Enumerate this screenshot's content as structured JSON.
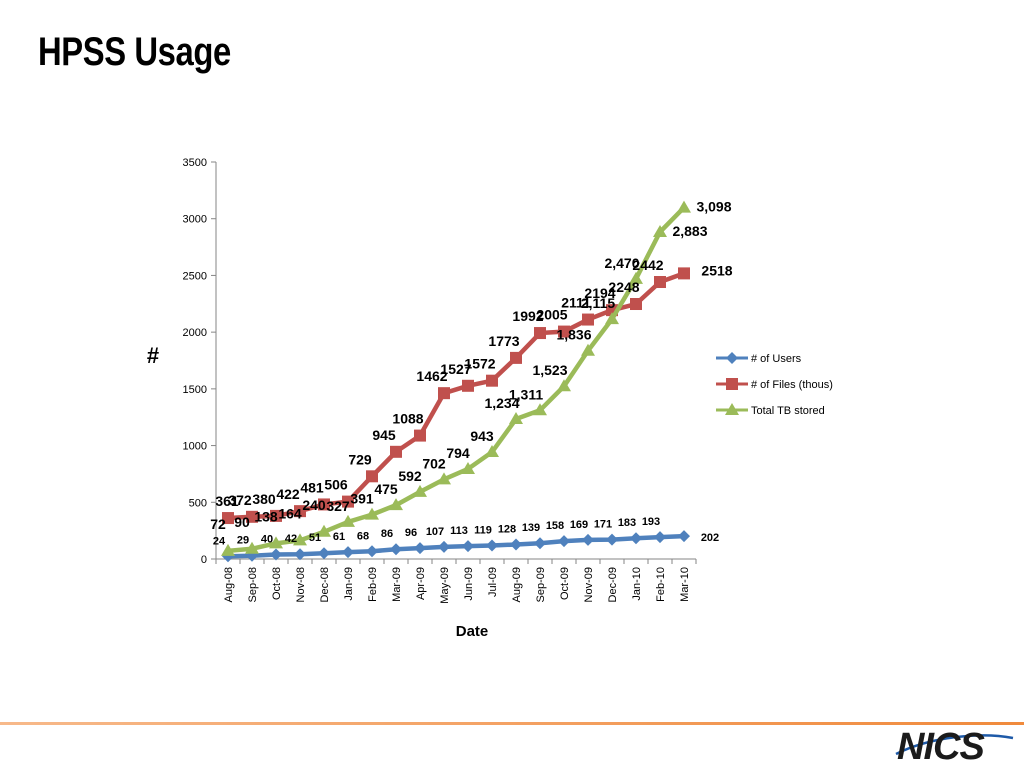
{
  "slide": {
    "title": "HPSS Usage",
    "logo": "NICS"
  },
  "chart_data": {
    "type": "line",
    "title": "",
    "xlabel": "Date",
    "ylabel": "#",
    "ylim": [
      0,
      3500
    ],
    "yticks": [
      0,
      500,
      1000,
      1500,
      2000,
      2500,
      3000,
      3500
    ],
    "grid": false,
    "legend_position": "right",
    "categories": [
      "Aug-08",
      "Sep-08",
      "Oct-08",
      "Nov-08",
      "Dec-08",
      "Jan-09",
      "Feb-09",
      "Mar-09",
      "Apr-09",
      "May-09",
      "Jun-09",
      "Jul-09",
      "Aug-09",
      "Sep-09",
      "Oct-09",
      "Nov-09",
      "Dec-09",
      "Jan-10",
      "Feb-10",
      "Mar-10"
    ],
    "series": [
      {
        "name": "# of Users",
        "color": "#4f81bd",
        "marker": "diamond",
        "values": [
          24,
          29,
          40,
          42,
          51,
          61,
          68,
          86,
          96,
          107,
          113,
          119,
          128,
          139,
          158,
          169,
          171,
          183,
          193,
          202
        ],
        "labels": [
          "24",
          "29",
          "40",
          "42",
          "51",
          "61",
          "68",
          "86",
          "96",
          "107",
          "113",
          "119",
          "128",
          "139",
          "158",
          "169",
          "171",
          "183",
          "193",
          "202"
        ]
      },
      {
        "name": "# of Files (thous)",
        "color": "#c0504d",
        "marker": "square",
        "values": [
          361,
          372,
          380,
          422,
          481,
          506,
          729,
          945,
          1088,
          1462,
          1527,
          1572,
          1773,
          1992,
          2005,
          2111,
          2194,
          2248,
          2442,
          2518
        ],
        "labels": [
          "361",
          "372",
          "380",
          "422",
          "481",
          "506",
          "729",
          "945",
          "1088",
          "1462",
          "1527",
          "1572",
          "1773",
          "1992",
          "2005",
          "2111",
          "2194",
          "2248",
          "2442",
          "2518"
        ]
      },
      {
        "name": "Total TB stored",
        "color": "#9bbb59",
        "marker": "triangle",
        "values": [
          72,
          90,
          138,
          164,
          240,
          327,
          391,
          475,
          592,
          702,
          794,
          943,
          1234,
          1311,
          1523,
          1836,
          2115,
          2470,
          2883,
          3098
        ],
        "labels": [
          "72",
          "90",
          "138",
          "164",
          "240",
          "327",
          "391",
          "475",
          "592",
          "702",
          "794",
          "943",
          "1,234",
          "1,311",
          "1,523",
          "1,836",
          "2,115",
          "2,470",
          "2,883",
          "3,098"
        ]
      }
    ]
  }
}
